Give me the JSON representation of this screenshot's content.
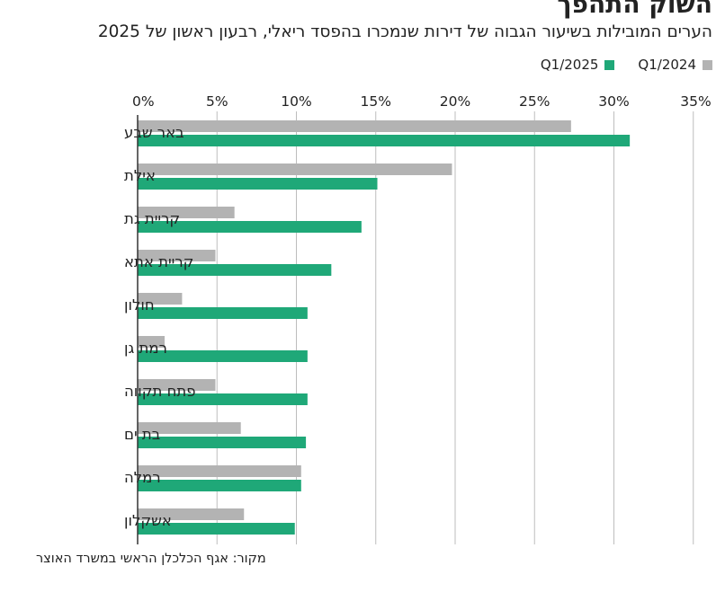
{
  "header": {
    "title": "השוק התהפך",
    "subtitle": "הערים המובילות בשיעור הגבוה של דירות שנמכרו בהפסד ריאלי, רבעון ראשון של 2025"
  },
  "legend": {
    "items": [
      {
        "label": "Q1/2024",
        "color": "#b3b3b3"
      },
      {
        "label": "Q1/2025",
        "color": "#1fa878"
      }
    ]
  },
  "source": "מקור: אגף הכלכלן הראשי במשרד האוצר",
  "chart_data": {
    "type": "bar",
    "orientation": "horizontal",
    "title": "השוק התהפך",
    "categories": [
      "באר שבע",
      "אילת",
      "קריית גת",
      "קריית אתא",
      "חולון",
      "רמת גן",
      "פתח תקווה",
      "בת ים",
      "רמלה",
      "אשקלון"
    ],
    "series": [
      {
        "name": "Q1/2024",
        "color": "#b3b3b3",
        "values": [
          27.3,
          19.8,
          6.1,
          4.9,
          2.8,
          1.7,
          4.9,
          6.5,
          10.3,
          6.7
        ]
      },
      {
        "name": "Q1/2025",
        "color": "#1fa878",
        "values": [
          31.0,
          15.1,
          14.1,
          12.2,
          10.7,
          10.7,
          10.7,
          10.6,
          10.3,
          9.9
        ]
      }
    ],
    "x_ticks": [
      "0%",
      "5%",
      "10%",
      "15%",
      "20%",
      "25%",
      "30%",
      "35%"
    ],
    "xlim": [
      0,
      35
    ],
    "grid": true,
    "legend_position": "top-right",
    "xlabel": "",
    "ylabel": ""
  }
}
